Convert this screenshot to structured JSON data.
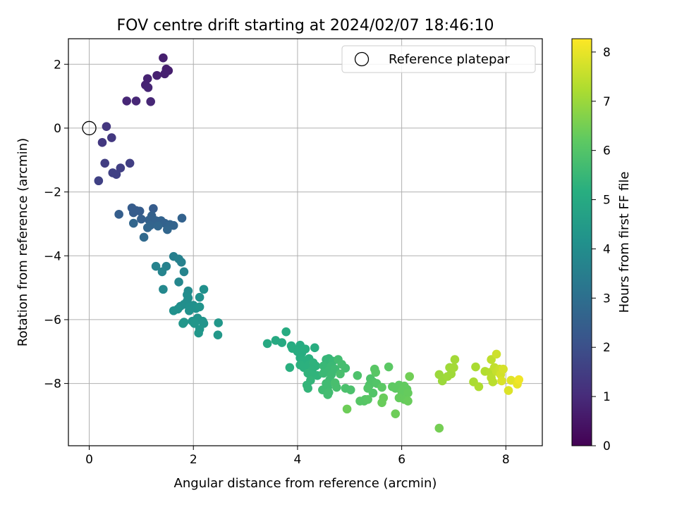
{
  "chart_data": {
    "type": "scatter",
    "title": "FOV centre drift starting at 2024/02/07 18:46:10",
    "xlabel": "Angular distance from reference (arcmin)",
    "ylabel": "Rotation from reference (arcmin)",
    "xlim": [
      -0.4,
      8.7
    ],
    "ylim": [
      -9.95,
      2.8
    ],
    "xticks": [
      0,
      2,
      4,
      6,
      8
    ],
    "yticks": [
      2,
      0,
      -2,
      -4,
      -6,
      -8
    ],
    "xtick_labels": [
      "0",
      "2",
      "4",
      "6",
      "8"
    ],
    "ytick_labels": [
      "2",
      "0",
      "−2",
      "−4",
      "−6",
      "−8"
    ],
    "grid": true,
    "legend": {
      "position": "top-right",
      "entries": [
        {
          "label": "Reference platepar",
          "marker": "open-circle"
        }
      ]
    },
    "reference_point": {
      "x": 0,
      "y": 0
    },
    "colorbar": {
      "label": "Hours from first FF file",
      "colormap": "viridis",
      "range": [
        0,
        8.27
      ],
      "ticks": [
        0,
        1,
        2,
        3,
        4,
        5,
        6,
        7,
        8
      ],
      "tick_labels": [
        "0",
        "1",
        "2",
        "3",
        "4",
        "5",
        "6",
        "7",
        "8"
      ]
    },
    "series": [
      {
        "points": [
          [
            1.42,
            2.2,
            0.7
          ],
          [
            1.48,
            1.85,
            0.7
          ],
          [
            1.52,
            1.8,
            0.7
          ],
          [
            1.45,
            1.7,
            0.75
          ],
          [
            1.3,
            1.65,
            0.75
          ],
          [
            1.12,
            1.55,
            0.8
          ],
          [
            1.08,
            1.35,
            0.8
          ],
          [
            1.13,
            1.27,
            0.85
          ],
          [
            0.72,
            0.85,
            0.9
          ],
          [
            0.9,
            0.85,
            0.9
          ],
          [
            1.18,
            0.83,
            0.9
          ],
          [
            0.33,
            0.05,
            1.3
          ],
          [
            0.43,
            -0.3,
            1.35
          ],
          [
            0.25,
            -0.45,
            1.35
          ],
          [
            0.3,
            -1.1,
            1.5
          ],
          [
            0.78,
            -1.1,
            1.55
          ],
          [
            0.6,
            -1.25,
            1.55
          ],
          [
            0.45,
            -1.4,
            1.6
          ],
          [
            0.52,
            -1.45,
            1.6
          ],
          [
            0.18,
            -1.65,
            1.6
          ],
          [
            0.82,
            -2.5,
            2.4
          ],
          [
            0.9,
            -2.58,
            2.4
          ],
          [
            0.85,
            -2.65,
            2.4
          ],
          [
            0.97,
            -2.6,
            2.4
          ],
          [
            1.23,
            -2.52,
            2.4
          ],
          [
            0.57,
            -2.7,
            2.45
          ],
          [
            1.0,
            -2.85,
            2.5
          ],
          [
            1.15,
            -2.88,
            2.55
          ],
          [
            1.2,
            -2.75,
            2.55
          ],
          [
            1.28,
            -2.9,
            2.6
          ],
          [
            1.38,
            -2.9,
            2.6
          ],
          [
            1.45,
            -2.98,
            2.6
          ],
          [
            1.5,
            -3.05,
            2.6
          ],
          [
            1.78,
            -2.82,
            2.6
          ],
          [
            1.55,
            -3.02,
            2.65
          ],
          [
            1.62,
            -3.05,
            2.65
          ],
          [
            1.17,
            -3.05,
            2.65
          ],
          [
            1.12,
            -3.12,
            2.7
          ],
          [
            1.32,
            -3.07,
            2.7
          ],
          [
            1.5,
            -3.18,
            2.7
          ],
          [
            0.85,
            -2.98,
            2.7
          ],
          [
            1.05,
            -3.42,
            2.8
          ],
          [
            1.62,
            -4.02,
            3.55
          ],
          [
            1.72,
            -4.1,
            3.6
          ],
          [
            1.77,
            -4.2,
            3.6
          ],
          [
            1.48,
            -4.33,
            3.6
          ],
          [
            1.28,
            -4.33,
            3.65
          ],
          [
            1.4,
            -4.5,
            3.7
          ],
          [
            1.82,
            -4.5,
            3.7
          ],
          [
            1.72,
            -4.82,
            3.8
          ],
          [
            1.42,
            -5.05,
            3.85
          ],
          [
            1.9,
            -5.1,
            3.95
          ],
          [
            1.88,
            -5.22,
            3.95
          ],
          [
            1.9,
            -5.32,
            4.0
          ],
          [
            1.88,
            -5.42,
            4.0
          ],
          [
            1.82,
            -5.52,
            4.05
          ],
          [
            1.75,
            -5.58,
            4.05
          ],
          [
            1.92,
            -5.6,
            4.1
          ],
          [
            2.0,
            -5.55,
            4.1
          ],
          [
            2.12,
            -5.3,
            4.1
          ],
          [
            2.2,
            -5.05,
            4.1
          ],
          [
            2.05,
            -5.65,
            4.15
          ],
          [
            1.92,
            -5.72,
            4.15
          ],
          [
            1.7,
            -5.67,
            4.15
          ],
          [
            1.62,
            -5.72,
            4.15
          ],
          [
            2.12,
            -5.6,
            4.2
          ],
          [
            2.08,
            -5.95,
            4.2
          ],
          [
            1.98,
            -6.05,
            4.2
          ],
          [
            2.08,
            -6.02,
            4.25
          ],
          [
            2.18,
            -6.05,
            4.25
          ],
          [
            2.2,
            -6.12,
            4.25
          ],
          [
            2.02,
            -6.12,
            4.3
          ],
          [
            1.82,
            -6.08,
            4.3
          ],
          [
            1.8,
            -6.12,
            4.3
          ],
          [
            2.12,
            -6.3,
            4.3
          ],
          [
            2.1,
            -6.42,
            4.35
          ],
          [
            2.48,
            -6.1,
            4.35
          ],
          [
            2.47,
            -6.48,
            4.4
          ],
          [
            3.42,
            -6.75,
            5.0
          ],
          [
            3.58,
            -6.65,
            5.0
          ],
          [
            3.7,
            -6.72,
            5.0
          ],
          [
            3.78,
            -6.38,
            5.05
          ],
          [
            3.88,
            -6.82,
            5.05
          ],
          [
            4.05,
            -6.8,
            5.05
          ],
          [
            3.9,
            -6.9,
            5.1
          ],
          [
            4.0,
            -7.0,
            5.1
          ],
          [
            4.08,
            -7.05,
            5.1
          ],
          [
            4.15,
            -6.92,
            5.15
          ],
          [
            4.33,
            -6.88,
            5.15
          ],
          [
            4.05,
            -7.2,
            5.15
          ],
          [
            4.12,
            -7.28,
            5.2
          ],
          [
            4.22,
            -7.22,
            5.2
          ],
          [
            3.85,
            -7.5,
            5.2
          ],
          [
            4.05,
            -7.42,
            5.25
          ],
          [
            4.12,
            -7.5,
            5.25
          ],
          [
            4.22,
            -7.42,
            5.25
          ],
          [
            4.3,
            -7.35,
            5.3
          ],
          [
            4.35,
            -7.45,
            5.3
          ],
          [
            4.28,
            -7.58,
            5.3
          ],
          [
            4.2,
            -7.68,
            5.35
          ],
          [
            4.28,
            -7.72,
            5.35
          ],
          [
            4.38,
            -7.75,
            5.35
          ],
          [
            4.25,
            -7.9,
            5.4
          ],
          [
            4.18,
            -8.05,
            5.4
          ],
          [
            4.2,
            -8.15,
            5.4
          ],
          [
            4.55,
            -7.25,
            5.45
          ],
          [
            4.6,
            -7.22,
            5.45
          ],
          [
            4.58,
            -7.32,
            5.45
          ],
          [
            4.5,
            -7.45,
            5.5
          ],
          [
            4.55,
            -7.52,
            5.5
          ],
          [
            4.68,
            -7.3,
            5.5
          ],
          [
            4.65,
            -7.45,
            5.55
          ],
          [
            4.6,
            -7.6,
            5.55
          ],
          [
            4.5,
            -7.68,
            5.55
          ],
          [
            4.72,
            -7.55,
            5.6
          ],
          [
            4.65,
            -7.72,
            5.6
          ],
          [
            4.62,
            -7.88,
            5.6
          ],
          [
            4.55,
            -8.0,
            5.65
          ],
          [
            4.58,
            -8.12,
            5.65
          ],
          [
            4.48,
            -8.2,
            5.65
          ],
          [
            4.6,
            -8.28,
            5.7
          ],
          [
            4.58,
            -8.35,
            5.7
          ],
          [
            4.78,
            -7.25,
            5.7
          ],
          [
            4.85,
            -7.4,
            5.75
          ],
          [
            4.92,
            -7.52,
            5.75
          ],
          [
            4.82,
            -7.7,
            5.8
          ],
          [
            4.72,
            -7.98,
            5.8
          ],
          [
            4.75,
            -8.12,
            5.8
          ],
          [
            4.92,
            -8.15,
            5.85
          ],
          [
            5.02,
            -8.2,
            5.85
          ],
          [
            5.15,
            -7.75,
            5.9
          ],
          [
            5.4,
            -7.85,
            5.9
          ],
          [
            5.45,
            -7.95,
            5.95
          ],
          [
            5.38,
            -8.05,
            5.95
          ],
          [
            5.35,
            -8.15,
            6.0
          ],
          [
            5.52,
            -8.0,
            6.0
          ],
          [
            5.45,
            -8.3,
            6.0
          ],
          [
            5.3,
            -8.5,
            6.05
          ],
          [
            5.2,
            -8.55,
            6.05
          ],
          [
            5.28,
            -8.55,
            6.05
          ],
          [
            5.35,
            -8.5,
            6.1
          ],
          [
            5.48,
            -7.55,
            6.1
          ],
          [
            5.5,
            -7.65,
            6.1
          ],
          [
            5.62,
            -8.12,
            6.15
          ],
          [
            5.75,
            -7.48,
            6.15
          ],
          [
            5.82,
            -8.1,
            6.2
          ],
          [
            5.88,
            -8.15,
            6.2
          ],
          [
            5.95,
            -8.05,
            6.2
          ],
          [
            6.05,
            -8.08,
            6.25
          ],
          [
            6.1,
            -8.18,
            6.25
          ],
          [
            6.0,
            -8.25,
            6.25
          ],
          [
            6.12,
            -8.3,
            6.3
          ],
          [
            5.95,
            -8.45,
            6.3
          ],
          [
            6.05,
            -8.5,
            6.3
          ],
          [
            6.12,
            -8.55,
            6.35
          ],
          [
            5.65,
            -8.45,
            6.35
          ],
          [
            5.62,
            -8.6,
            6.35
          ],
          [
            5.88,
            -8.95,
            6.4
          ],
          [
            4.95,
            -8.8,
            6.4
          ],
          [
            6.15,
            -7.78,
            6.45
          ],
          [
            6.72,
            -9.4,
            6.5
          ],
          [
            6.72,
            -7.72,
            7.0
          ],
          [
            6.78,
            -7.92,
            7.0
          ],
          [
            6.88,
            -7.78,
            7.05
          ],
          [
            6.95,
            -7.7,
            7.05
          ],
          [
            6.92,
            -7.5,
            7.05
          ],
          [
            7.02,
            -7.25,
            7.1
          ],
          [
            7.0,
            -7.5,
            7.1
          ],
          [
            7.38,
            -7.95,
            7.2
          ],
          [
            7.42,
            -7.48,
            7.2
          ],
          [
            7.48,
            -8.1,
            7.25
          ],
          [
            7.6,
            -7.62,
            7.3
          ],
          [
            7.7,
            -7.65,
            7.35
          ],
          [
            7.72,
            -7.82,
            7.4
          ],
          [
            7.75,
            -7.95,
            7.4
          ],
          [
            7.72,
            -7.25,
            7.45
          ],
          [
            7.78,
            -7.5,
            7.5
          ],
          [
            7.82,
            -7.62,
            7.55
          ],
          [
            7.88,
            -7.55,
            7.6
          ],
          [
            7.82,
            -7.08,
            7.65
          ],
          [
            7.9,
            -7.72,
            7.7
          ],
          [
            7.95,
            -7.55,
            7.75
          ],
          [
            7.92,
            -7.92,
            7.8
          ],
          [
            8.05,
            -8.22,
            7.85
          ],
          [
            8.1,
            -7.9,
            7.9
          ],
          [
            8.22,
            -8.02,
            8.0
          ],
          [
            8.25,
            -7.88,
            8.1
          ]
        ]
      }
    ]
  }
}
